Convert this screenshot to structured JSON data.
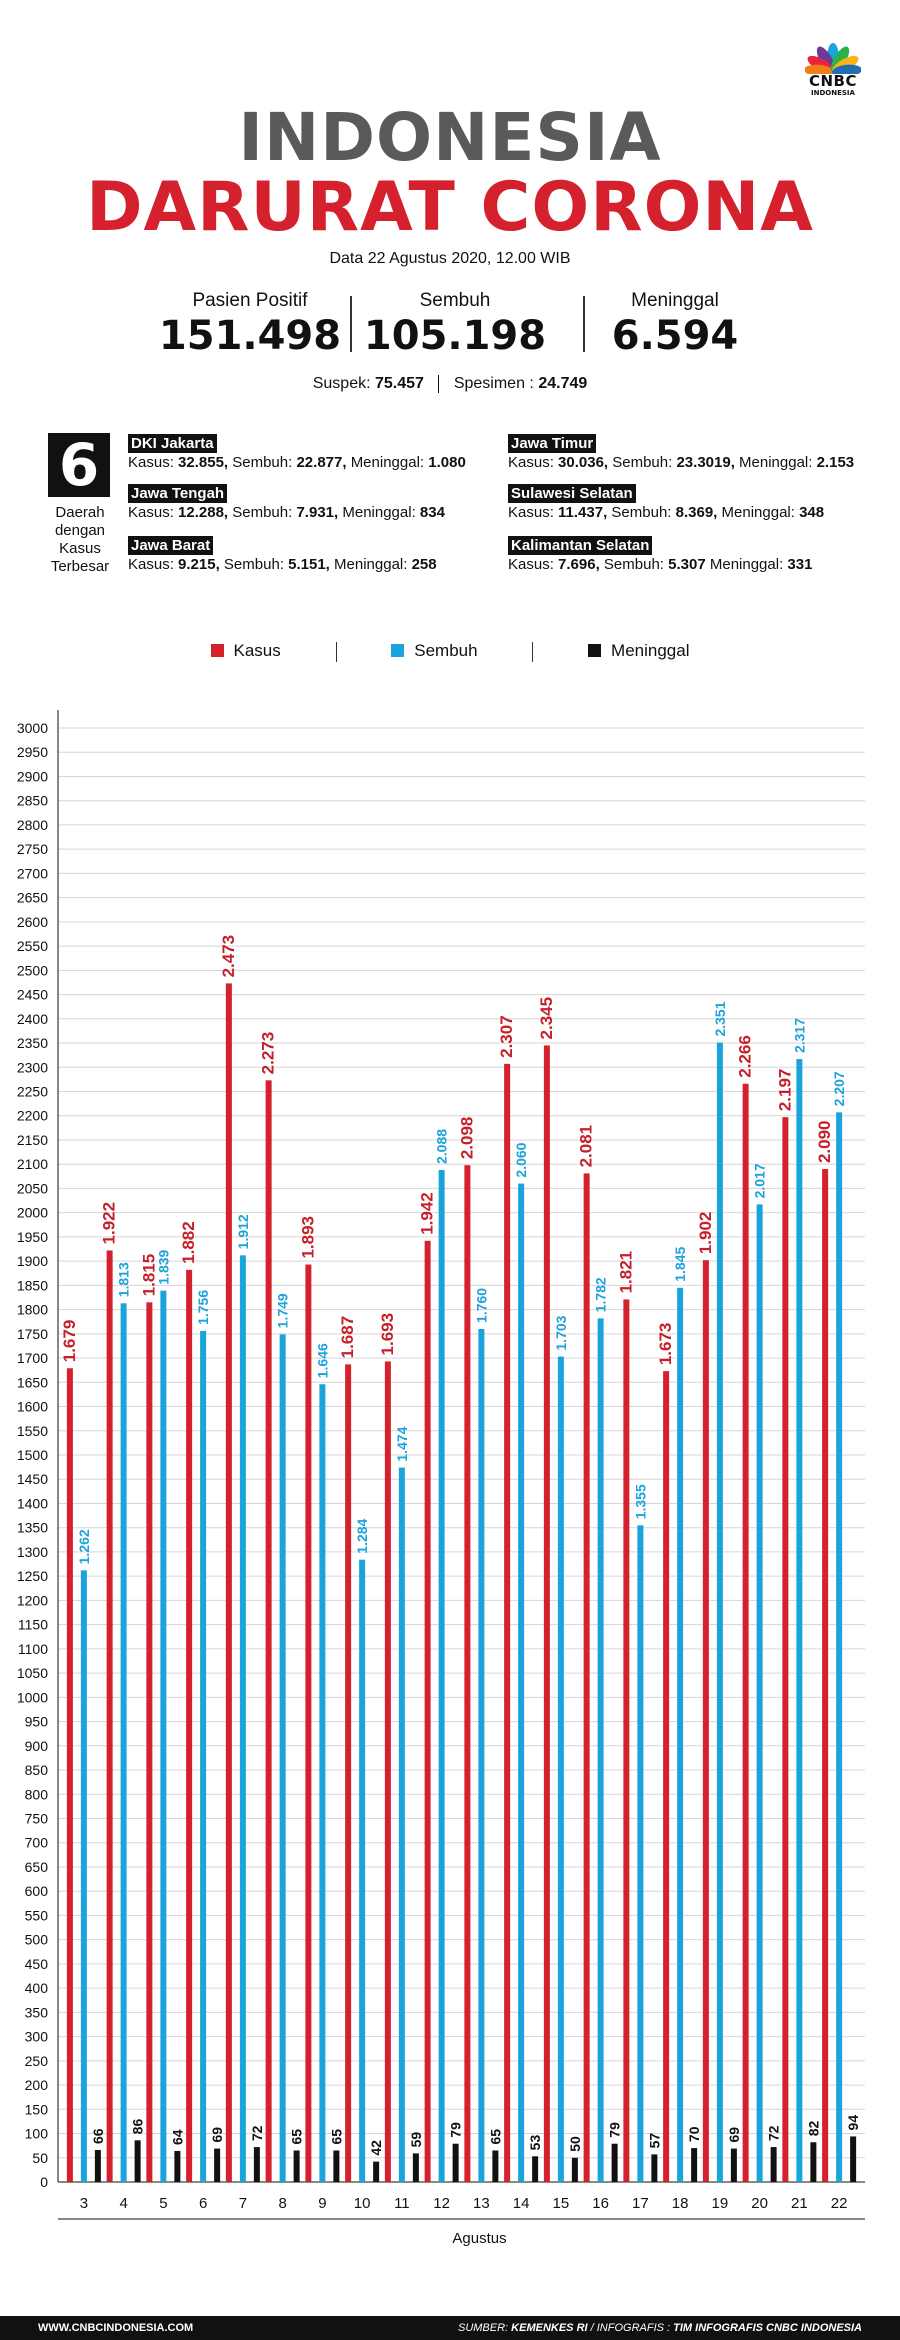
{
  "brand": {
    "line1": "CNBC",
    "line2": "INDONESIA"
  },
  "title": {
    "line1": "INDONESIA",
    "line2": "DARURAT CORONA"
  },
  "date_text": "Data 22 Agustus 2020, 12.00 WIB",
  "stats": [
    {
      "label": "Pasien Positif",
      "value": "151.498"
    },
    {
      "label": "Sembuh",
      "value": "105.198"
    },
    {
      "label": "Meninggal",
      "value": "6.594"
    }
  ],
  "secondary": {
    "suspek_label": "Suspek:",
    "suspek_value": "75.457",
    "spesimen_label": "Spesimen :",
    "spesimen_value": "24.749"
  },
  "regions_block": {
    "count": "6",
    "label_lines": [
      "Daerah",
      "dengan",
      "Kasus",
      "Terbesar"
    ],
    "left": [
      {
        "name": "DKI Jakarta",
        "k_label": "Kasus:",
        "kasus": "32.855,",
        "s_label": "Sembuh:",
        "sembuh": "22.877,",
        "m_label": "Meninggal:",
        "meninggal": "1.080"
      },
      {
        "name": "Jawa Tengah",
        "k_label": "Kasus:",
        "kasus": "12.288,",
        "s_label": "Sembuh:",
        "sembuh": "7.931,",
        "m_label": "Meninggal:",
        "meninggal": "834"
      },
      {
        "name": "Jawa Barat",
        "k_label": "Kasus:",
        "kasus": "9.215,",
        "s_label": "Sembuh:",
        "sembuh": "5.151,",
        "m_label": "Meninggal:",
        "meninggal": "258"
      }
    ],
    "right": [
      {
        "name": "Jawa Timur",
        "k_label": "Kasus:",
        "kasus": "30.036,",
        "s_label": "Sembuh:",
        "sembuh": "23.3019,",
        "m_label": "Meninggal:",
        "meninggal": "2.153"
      },
      {
        "name": "Sulawesi Selatan",
        "k_label": "Kasus:",
        "kasus": "11.437,",
        "s_label": "Sembuh:",
        "sembuh": "8.369,",
        "m_label": "Meninggal:",
        "meninggal": "348"
      },
      {
        "name": "Kalimantan Selatan",
        "k_label": "Kasus:",
        "kasus": "7.696,",
        "s_label": "Sembuh:",
        "sembuh": "5.307",
        "m_label": "Meninggal:",
        "meninggal": "331"
      }
    ]
  },
  "legend": [
    {
      "label": "Kasus",
      "color": "#d4212d"
    },
    {
      "label": "Sembuh",
      "color": "#1ba3dc"
    },
    {
      "label": "Meninggal",
      "color": "#111111"
    }
  ],
  "chart_data": {
    "type": "bar",
    "xlabel": "Agustus",
    "ylabel": "",
    "ylim": [
      0,
      3000
    ],
    "yticks": [
      0,
      50,
      100,
      150,
      200,
      250,
      300,
      350,
      400,
      450,
      500,
      550,
      600,
      650,
      700,
      750,
      800,
      850,
      900,
      950,
      1000,
      1050,
      1100,
      1150,
      1200,
      1250,
      1300,
      1350,
      1400,
      1450,
      1500,
      1550,
      1600,
      1650,
      1700,
      1750,
      1800,
      1850,
      1900,
      1950,
      2000,
      2050,
      2100,
      2150,
      2200,
      2250,
      2300,
      2350,
      2400,
      2450,
      2500,
      2550,
      2600,
      2650,
      2700,
      2750,
      2800,
      2850,
      2900,
      2950,
      3000
    ],
    "categories": [
      "3",
      "4",
      "5",
      "6",
      "7",
      "8",
      "9",
      "10",
      "11",
      "12",
      "13",
      "14",
      "15",
      "16",
      "17",
      "18",
      "19",
      "20",
      "21",
      "22"
    ],
    "series": [
      {
        "name": "Kasus",
        "color": "#d4212d",
        "values": [
          1679,
          1922,
          1815,
          1882,
          2473,
          2273,
          1893,
          1687,
          1693,
          1942,
          2098,
          2307,
          2345,
          2081,
          1821,
          1673,
          1902,
          2266,
          2197,
          2090
        ],
        "labels": [
          "1.679",
          "1.922",
          "1.815",
          "1.882",
          "2.473",
          "2.273",
          "1.893",
          "1.687",
          "1.693",
          "1.942",
          "2.098",
          "2.307",
          "2.345",
          "2.081",
          "1.821",
          "1.673",
          "1.902",
          "2.266",
          "2.197",
          "2.090"
        ]
      },
      {
        "name": "Sembuh",
        "color": "#1ba3dc",
        "values": [
          1262,
          1813,
          1839,
          1756,
          1912,
          1749,
          1646,
          1284,
          1474,
          2088,
          1760,
          2060,
          1703,
          1782,
          1355,
          1845,
          2351,
          2017,
          2317,
          2207
        ],
        "labels": [
          "1.262",
          "1.813",
          "1.839",
          "1.756",
          "1.912",
          "1.749",
          "1.646",
          "1.284",
          "1.474",
          "2.088",
          "1.760",
          "2.060",
          "1.703",
          "1.782",
          "1.355",
          "1.845",
          "2.351",
          "2.017",
          "2.317",
          "2.207"
        ]
      },
      {
        "name": "Meninggal",
        "color": "#111111",
        "values": [
          66,
          86,
          64,
          69,
          72,
          65,
          65,
          42,
          59,
          79,
          65,
          53,
          50,
          79,
          57,
          70,
          69,
          72,
          82,
          94
        ],
        "labels": [
          "66",
          "86",
          "64",
          "69",
          "72",
          "65",
          "65",
          "42",
          "59",
          "79",
          "65",
          "53",
          "50",
          "79",
          "57",
          "70",
          "69",
          "72",
          "82",
          "94"
        ]
      }
    ]
  },
  "footer": {
    "left": "WWW.CNBCINDONESIA.COM",
    "sumber_label": "SUMBER:",
    "sumber": "KEMENKES RI",
    "infografis_label": "/ INFOGRAFIS :",
    "infografis": "TIM INFOGRAFIS CNBC INDONESIA"
  }
}
